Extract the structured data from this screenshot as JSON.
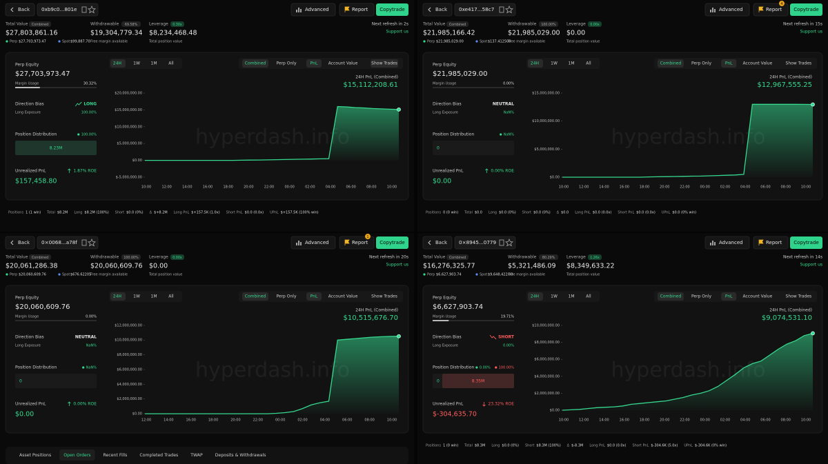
{
  "watermark": "hyperdash.info",
  "labels": {
    "back": "Back",
    "advanced": "Advanced",
    "report": "Report",
    "copytrade": "Copytrade",
    "total_value": "Total Value",
    "combined": "Combined",
    "perp": "Perp",
    "spot": "Spot",
    "withdrawable": "Withdrawable",
    "free_margin": "Free margin available",
    "leverage": "Leverage",
    "total_position": "Total position value",
    "support": "Support us",
    "perp_equity": "Perp Equity",
    "margin_usage": "Margin Usage",
    "direction_bias": "Direction Bias",
    "long_exposure": "Long Exposure",
    "position_distribution": "Position Distribution",
    "unrealized_pnl": "Unrealized PnL",
    "pnl_24h": "24H PnL (Combined)",
    "ranges": [
      "24H",
      "1W",
      "1M",
      "All"
    ],
    "views": [
      "Combined",
      "Perp Only",
      "PnL",
      "Account Value",
      "Show Trades"
    ]
  },
  "panels": [
    {
      "address": "0xb9c0...801e",
      "total_value": "$27,803,861.16",
      "perp_value": "$27,703,973.47",
      "spot_value": "$99,887.70",
      "withdrawable_pct": "69.58%",
      "withdrawable": "$19,304,779.34",
      "leverage_x": "0.30x",
      "position_value": "$8,234,468.48",
      "refresh": "Next refresh in 2s",
      "perp_equity": "$27,703,973.47",
      "margin_usage": {
        "value": 30.32,
        "label": "30.32%"
      },
      "direction": "LONG",
      "direction_color": "#35d98f",
      "long_exposure": "100.00%",
      "dist_pcts": [
        "100.00%"
      ],
      "dist_labels": [
        "8.23M"
      ],
      "dist_color": "#35d98f",
      "roe": "1.87% ROE",
      "roe_color": "#35d98f",
      "upnl": "$157,458.80",
      "upnl_color": "#35d98f",
      "pnl": "$15,112,208.61",
      "chart": {
        "type": "area",
        "ylim": [
          -6430000,
          21430000
        ],
        "yticks": [
          {
            "value": 20000000,
            "label": "$20,000,000.00"
          },
          {
            "value": 15000000,
            "label": "$15,000,000.00"
          },
          {
            "value": 10000000,
            "label": "$10,000,000.00"
          },
          {
            "value": 5000000,
            "label": "$5,000,000.00"
          },
          {
            "value": 0,
            "label": "$0.00"
          },
          {
            "value": -5000000,
            "label": "$-5,000,000.00"
          }
        ],
        "xticks": [
          "10:00",
          "12:00",
          "14:00",
          "16:00",
          "18:00",
          "20:00",
          "22:00",
          "00:00",
          "02:00",
          "04:00",
          "06:00",
          "08:00",
          "10:00"
        ],
        "values": [
          0,
          0,
          0,
          0,
          0,
          0,
          0,
          0,
          0,
          0,
          0,
          50000,
          80000,
          100000,
          150000,
          200000,
          250000,
          300000,
          350000,
          400000,
          450000,
          500000,
          16000000,
          15900000,
          15700000,
          15600000,
          15400000,
          15300000,
          15200000,
          15112208.61
        ]
      },
      "positions": [
        [
          "Positions",
          "1 (1 win)"
        ],
        [
          "Total",
          "$8.2M"
        ],
        [
          "Long",
          "$8.2M (100%)"
        ],
        [
          "Short",
          "$0.0 (0%)"
        ],
        [
          "Δ",
          "$+8.2M"
        ],
        [
          "Long PnL",
          "$+157.5K (1.0x)"
        ],
        [
          "Short PnL",
          "$0.0 (0.0x)"
        ],
        [
          "UPnL",
          "$+157.5K (100% win)"
        ]
      ]
    },
    {
      "address": "0xe417...58c7",
      "report_badge": "4",
      "total_value": "$21,985,166.42",
      "perp_value": "$21,985,029.00",
      "spot_value": "$137.412508",
      "withdrawable_pct": "100.00%",
      "withdrawable": "$21,985,029.00",
      "leverage_x": "0.00x",
      "position_value": "$0.00",
      "refresh": "Next refresh in 15s",
      "perp_equity": "$21,985,029.00",
      "margin_usage": {
        "value": 0,
        "label": "0.00%"
      },
      "direction": "NEUTRAL",
      "direction_color": "#e6e6e6",
      "long_exposure": "NaN%",
      "dist_pcts": [
        "NaN%"
      ],
      "dist_labels": [
        "0"
      ],
      "dist_color": null,
      "roe": "0.00% ROE",
      "roe_color": "#35d98f",
      "upnl": "$0.00",
      "upnl_color": "#35d98f",
      "pnl": "$12,967,555.25",
      "chart": {
        "type": "area",
        "ylim": [
          -860000,
          15860000
        ],
        "yticks": [
          {
            "value": 15000000,
            "label": "$15,000,000.00"
          },
          {
            "value": 10000000,
            "label": "$10,000,000.00"
          },
          {
            "value": 5000000,
            "label": "$5,000,000.00"
          },
          {
            "value": 0,
            "label": "$0.00"
          }
        ],
        "xticks": [
          "10:00",
          "12:00",
          "14:00",
          "16:00",
          "18:00",
          "20:00",
          "22:00",
          "00:00",
          "02:00",
          "04:00",
          "06:00",
          "08:00",
          "10:00"
        ],
        "values": [
          0,
          0,
          0,
          0,
          0,
          0,
          0,
          0,
          0,
          0,
          50000,
          80000,
          100000,
          120000,
          150000,
          180000,
          200000,
          250000,
          300000,
          350000,
          400000,
          500000,
          13000000,
          13000000,
          13000000,
          13000000,
          13000000,
          12990000,
          12980000,
          12967555.25
        ]
      },
      "positions": [
        [
          "Positions",
          "0 (0 win)"
        ],
        [
          "Total",
          "$0.0"
        ],
        [
          "Long",
          "$0.0 (0%)"
        ],
        [
          "Short",
          "$0.0 (0%)"
        ],
        [
          "Δ",
          "$0.0"
        ],
        [
          "Long PnL",
          "$0.0 (0.0x)"
        ],
        [
          "Short PnL",
          "$0.0 (0.0x)"
        ],
        [
          "UPnL",
          "$0.0 (0% win)"
        ]
      ]
    },
    {
      "address": "0×0068...a78f",
      "report_badge": "1",
      "total_value": "$20,061,286.38",
      "perp_value": "$20,060,609.76",
      "spot_value": "$676.62205",
      "withdrawable_pct": "100.00%",
      "withdrawable": "$20,060,609.76",
      "leverage_x": "0.00x",
      "position_value": "$0.00",
      "refresh": "Next refresh in 20s",
      "perp_equity": "$20,060,609.76",
      "margin_usage": {
        "value": 0,
        "label": "0.00%"
      },
      "direction": "NEUTRAL",
      "direction_color": "#e6e6e6",
      "long_exposure": "NaN%",
      "dist_pcts": [
        "NaN%"
      ],
      "dist_labels": [
        "0"
      ],
      "dist_color": null,
      "roe": "0.00% ROE",
      "roe_color": "#35d98f",
      "upnl": "$0.00",
      "upnl_color": "#35d98f",
      "pnl": "$10,515,676.70",
      "chart": {
        "type": "area",
        "ylim": [
          -180000,
          12550000
        ],
        "yticks": [
          {
            "value": 12000000,
            "label": "$12,000,000.00"
          },
          {
            "value": 10000000,
            "label": "$10,000,000.00"
          },
          {
            "value": 8000000,
            "label": "$8,000,000.00"
          },
          {
            "value": 6000000,
            "label": "$6,000,000.00"
          },
          {
            "value": 4000000,
            "label": "$4,000,000.00"
          },
          {
            "value": 2000000,
            "label": "$2,000,000.00"
          },
          {
            "value": 0,
            "label": "$0.00"
          }
        ],
        "xticks": [
          "12:00",
          "14:00",
          "16:00",
          "18:00",
          "20:00",
          "22:00",
          "00:00",
          "02:00",
          "04:00",
          "06:00",
          "08:00",
          "10:00"
        ],
        "values": [
          0,
          0,
          0,
          0,
          0,
          0,
          0,
          0,
          0,
          0,
          0,
          0,
          0,
          0,
          0,
          50000,
          150000,
          300000,
          700000,
          1200000,
          1500000,
          1700000,
          10000000,
          10100000,
          10200000,
          10300000,
          10400000,
          10450000,
          10500000,
          10515676.7
        ]
      },
      "tabs": [
        "Asset Positions",
        "Open Orders",
        "Recent Fills",
        "Completed Trades",
        "TWAP",
        "Deposits & Withdrawals"
      ]
    },
    {
      "address": "0×8945...0779",
      "total_value": "$16,276,325.77",
      "perp_value": "$6,627,903.74",
      "spot_value": "$9,648,422.03",
      "withdrawable_pct": "80.29%",
      "withdrawable": "$5,321,486.09",
      "leverage_x": "1.26x",
      "position_value": "$8,349,633.22",
      "refresh": "Next refresh in 14s",
      "perp_equity": "$6,627,903.74",
      "margin_usage": {
        "value": 19.71,
        "label": "19.71%"
      },
      "direction": "SHORT",
      "direction_color": "#ff5c5c",
      "long_exposure": "0.00%",
      "dist_pcts": [
        "0.00%",
        "100.00%"
      ],
      "dist_labels": [
        "0",
        "8.35M"
      ],
      "dist_color": "#ff5c5c",
      "roe": "23.32% ROE",
      "roe_color": "#ff5c5c",
      "upnl": "$-304,635.70",
      "upnl_color": "#ff5c5c",
      "pnl": "$9,074,531.10",
      "chart": {
        "type": "area",
        "ylim": [
          -570000,
          10490000
        ],
        "yticks": [
          {
            "value": 10000000,
            "label": "$10,000,000.00"
          },
          {
            "value": 8000000,
            "label": "$8,000,000.00"
          },
          {
            "value": 6000000,
            "label": "$6,000,000.00"
          },
          {
            "value": 4000000,
            "label": "$4,000,000.00"
          },
          {
            "value": 2000000,
            "label": "$2,000,000.00"
          },
          {
            "value": 0,
            "label": "$0.00"
          }
        ],
        "xticks": [
          "10:00",
          "12:00",
          "14:00",
          "16:00",
          "18:00",
          "20:00",
          "22:00",
          "00:00",
          "02:00",
          "04:00",
          "06:00",
          "08:00",
          "10:00"
        ],
        "values": [
          0,
          50000,
          100000,
          200000,
          300000,
          350000,
          400000,
          500000,
          700000,
          800000,
          900000,
          1000000,
          1100000,
          1300000,
          1500000,
          1800000,
          2000000,
          2300000,
          2800000,
          3500000,
          4200000,
          5000000,
          5500000,
          5800000,
          6500000,
          7200000,
          7800000,
          8200000,
          8800000,
          9074531.1
        ]
      },
      "positions": [
        [
          "Positions",
          "1 (0 win)"
        ],
        [
          "Total",
          "$8.3M"
        ],
        [
          "Long",
          "$0.0 (0%)"
        ],
        [
          "Short",
          "$8.3M (100%)"
        ],
        [
          "Δ",
          "$-8.3M"
        ],
        [
          "Long PnL",
          "$0.0 (0.0x)"
        ],
        [
          "Short PnL",
          "$-304.6K (5.0x)"
        ],
        [
          "UPnL",
          "$-304.6K (0% win)"
        ]
      ]
    }
  ]
}
